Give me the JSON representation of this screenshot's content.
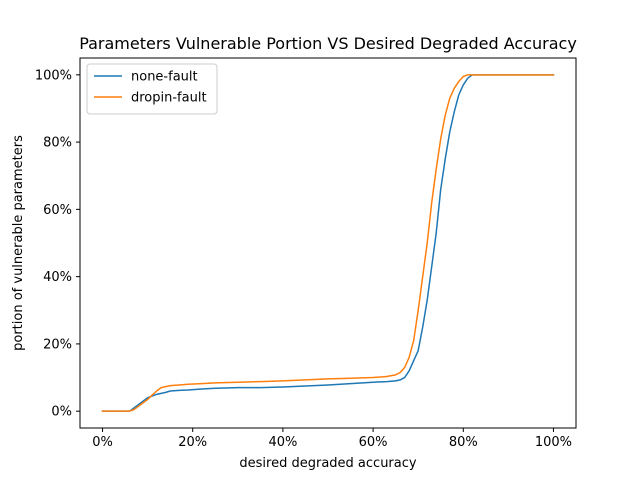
{
  "chart_data": {
    "type": "line",
    "title": "Parameters Vulnerable Portion VS Desired Degraded Accuracy",
    "xlabel": "desired degraded accuracy",
    "ylabel": "portion of vulnerable parameters",
    "xlim": [
      -5,
      105
    ],
    "ylim": [
      -5,
      105
    ],
    "xticks": [
      0,
      20,
      40,
      60,
      80,
      100
    ],
    "xtick_labels": [
      "0%",
      "20%",
      "40%",
      "60%",
      "80%",
      "100%"
    ],
    "yticks": [
      0,
      20,
      40,
      60,
      80,
      100
    ],
    "ytick_labels": [
      "0%",
      "20%",
      "40%",
      "60%",
      "80%",
      "100%"
    ],
    "grid": false,
    "legend_position": "top-left",
    "series": [
      {
        "name": "none-fault",
        "color": "#1f77b4",
        "x": [
          0,
          2,
          4,
          6,
          7,
          8,
          9,
          10,
          11,
          12,
          13,
          14,
          15,
          17,
          19,
          22,
          25,
          30,
          35,
          40,
          45,
          50,
          55,
          60,
          63,
          65,
          66,
          67,
          68,
          69,
          70,
          71,
          72,
          73,
          74,
          75,
          76,
          77,
          78,
          79,
          80,
          81,
          82,
          84,
          88,
          92,
          96,
          100
        ],
        "y": [
          0,
          0,
          0,
          0,
          1,
          2,
          3,
          4,
          4.5,
          5,
          5.3,
          5.6,
          6,
          6.2,
          6.3,
          6.6,
          6.8,
          7,
          7,
          7.2,
          7.5,
          7.8,
          8.2,
          8.6,
          8.8,
          9,
          9.3,
          10,
          12,
          15,
          18,
          25,
          33,
          43,
          53,
          66,
          75,
          83,
          89,
          94,
          97,
          99,
          100,
          100,
          100,
          100,
          100,
          100
        ]
      },
      {
        "name": "dropin-fault",
        "color": "#ff7f0e",
        "x": [
          0,
          2,
          4,
          6,
          7,
          8,
          9,
          10,
          11,
          12,
          13,
          14,
          15,
          17,
          19,
          22,
          25,
          30,
          35,
          40,
          45,
          50,
          55,
          60,
          63,
          65,
          66,
          67,
          68,
          69,
          70,
          71,
          72,
          73,
          74,
          75,
          76,
          77,
          78,
          79,
          80,
          81,
          82,
          84,
          88,
          92,
          96,
          100
        ],
        "y": [
          0,
          0,
          0,
          0,
          0.5,
          1.5,
          2.5,
          3.5,
          4.8,
          6,
          7,
          7.3,
          7.6,
          7.8,
          8,
          8.2,
          8.4,
          8.6,
          8.8,
          9,
          9.3,
          9.6,
          9.8,
          10,
          10.3,
          10.8,
          11.5,
          13,
          16,
          21,
          30,
          40,
          50,
          62,
          72,
          81,
          88,
          93,
          96,
          98,
          99.5,
          100,
          100,
          100,
          100,
          100,
          100,
          100
        ]
      }
    ]
  }
}
